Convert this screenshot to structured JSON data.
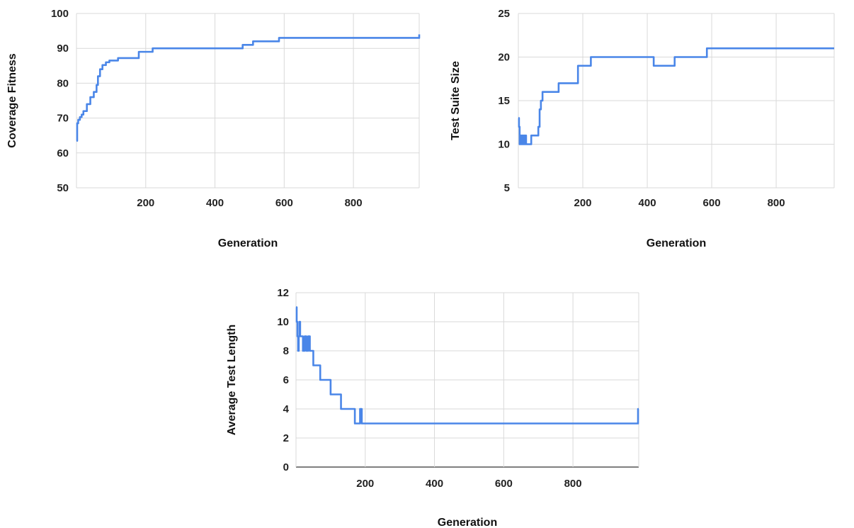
{
  "chart_data": [
    {
      "type": "line",
      "title": "",
      "xlabel": "Generation",
      "ylabel": "Coverage Fitness",
      "xlim": [
        0,
        990
      ],
      "ylim": [
        50,
        100
      ],
      "xticks": [
        200,
        400,
        600,
        800
      ],
      "yticks": [
        50,
        60,
        70,
        80,
        90,
        100
      ],
      "grid": true,
      "series_color": "#4a86e8",
      "x": [
        0,
        2,
        5,
        10,
        15,
        20,
        30,
        40,
        50,
        58,
        62,
        68,
        75,
        85,
        95,
        120,
        180,
        220,
        420,
        480,
        510,
        585,
        985,
        990
      ],
      "y": [
        63.5,
        68.5,
        69.5,
        70.3,
        71,
        72,
        74,
        76,
        77.5,
        79.5,
        82,
        84,
        85.2,
        86,
        86.5,
        87.2,
        89,
        90,
        90,
        91,
        92,
        93,
        93,
        94
      ]
    },
    {
      "type": "line",
      "title": "",
      "xlabel": "Generation",
      "ylabel": "Test Suite Size",
      "xlim": [
        0,
        980
      ],
      "ylim": [
        5,
        25
      ],
      "xticks": [
        200,
        400,
        600,
        800
      ],
      "yticks": [
        5,
        10,
        15,
        20,
        25
      ],
      "grid": true,
      "series_color": "#4a86e8",
      "x": [
        0,
        2,
        4,
        6,
        8,
        10,
        12,
        14,
        16,
        18,
        20,
        22,
        24,
        30,
        40,
        55,
        62,
        66,
        70,
        75,
        90,
        125,
        185,
        225,
        420,
        485,
        585,
        980
      ],
      "y": [
        13,
        12,
        10,
        11,
        10,
        11,
        10,
        11,
        10,
        11,
        10,
        11,
        10,
        10,
        11,
        11,
        12,
        14,
        15,
        16,
        16,
        17,
        19,
        20,
        19,
        20,
        21,
        21
      ]
    },
    {
      "type": "line",
      "title": "",
      "xlabel": "Generation",
      "ylabel": "Average Test Length",
      "xlim": [
        0,
        990
      ],
      "ylim": [
        0,
        12
      ],
      "xticks": [
        200,
        400,
        600,
        800
      ],
      "yticks": [
        0,
        2,
        4,
        6,
        8,
        10,
        12
      ],
      "grid": true,
      "series_color": "#4a86e8",
      "x": [
        0,
        2,
        4,
        6,
        8,
        10,
        12,
        15,
        20,
        25,
        30,
        35,
        40,
        50,
        55,
        60,
        70,
        100,
        105,
        130,
        140,
        170,
        175,
        185,
        190,
        980,
        988,
        990
      ],
      "y": [
        11,
        10,
        9,
        8,
        9,
        10,
        9,
        9,
        8,
        9,
        8,
        9,
        8,
        7,
        7,
        7,
        6,
        5,
        5,
        4,
        4,
        3,
        3,
        4,
        3,
        3,
        4,
        4
      ]
    }
  ]
}
